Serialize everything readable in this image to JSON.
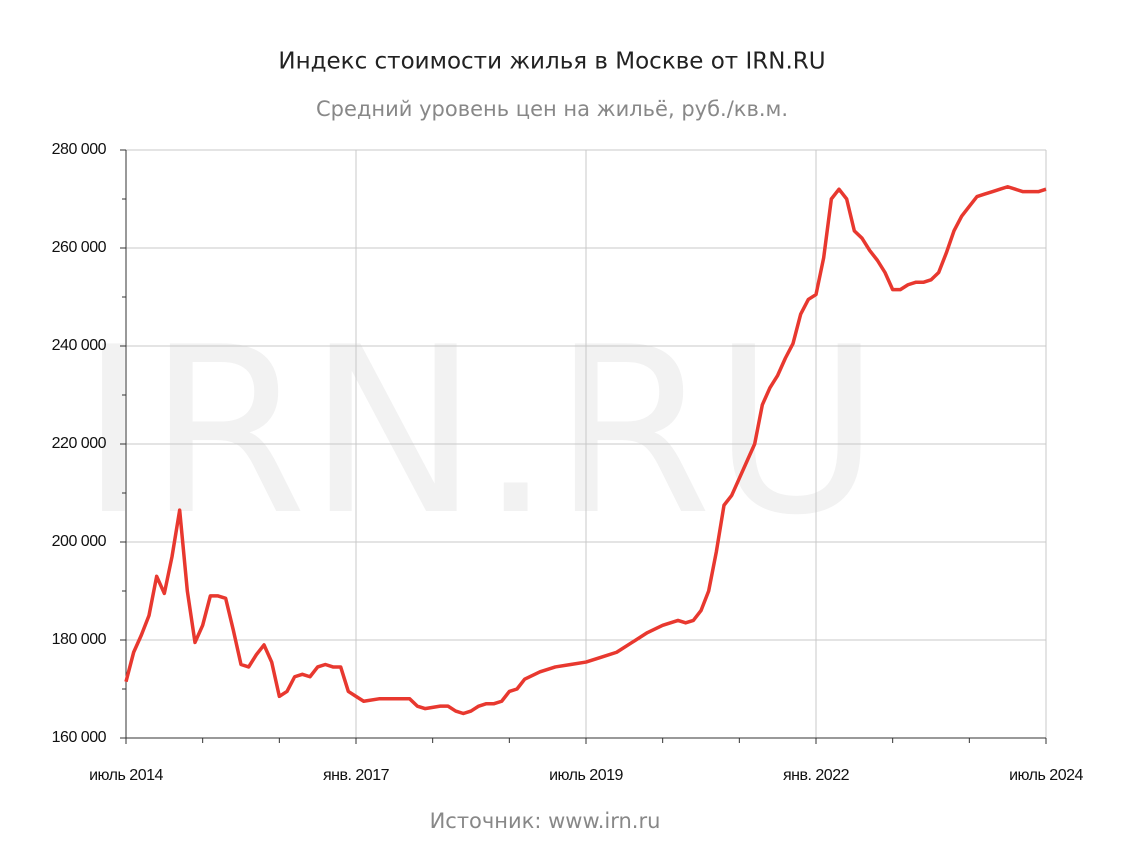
{
  "chart_data": {
    "type": "line",
    "title": "Индекс стоимости жилья в Москве от IRN.RU",
    "subtitle": "Средний уровень цен на жильё, руб./кв.м.",
    "watermark": "IRN.RU",
    "source": "Источник: www.irn.ru",
    "x": [
      "2014-07",
      "2014-08",
      "2014-09",
      "2014-10",
      "2014-11",
      "2014-12",
      "2015-01",
      "2015-02",
      "2015-03",
      "2015-04",
      "2015-05",
      "2015-06",
      "2015-07",
      "2015-08",
      "2015-09",
      "2015-10",
      "2015-11",
      "2015-12",
      "2016-01",
      "2016-02",
      "2016-03",
      "2016-04",
      "2016-05",
      "2016-06",
      "2016-07",
      "2016-08",
      "2016-09",
      "2016-10",
      "2016-11",
      "2016-12",
      "2017-01",
      "2017-02",
      "2017-04",
      "2017-07",
      "2017-08",
      "2017-09",
      "2017-10",
      "2017-12",
      "2018-01",
      "2018-02",
      "2018-03",
      "2018-04",
      "2018-05",
      "2018-06",
      "2018-07",
      "2018-08",
      "2018-09",
      "2018-10",
      "2018-11",
      "2019-01",
      "2019-03",
      "2019-05",
      "2019-07",
      "2019-09",
      "2019-11",
      "2020-01",
      "2020-03",
      "2020-05",
      "2020-07",
      "2020-08",
      "2020-09",
      "2020-10",
      "2020-11",
      "2020-12",
      "2021-01",
      "2021-02",
      "2021-03",
      "2021-04",
      "2021-05",
      "2021-06",
      "2021-07",
      "2021-08",
      "2021-09",
      "2021-10",
      "2021-11",
      "2021-12",
      "2022-01",
      "2022-02",
      "2022-03",
      "2022-04",
      "2022-05",
      "2022-06",
      "2022-07",
      "2022-08",
      "2022-09",
      "2022-10",
      "2022-11",
      "2022-12",
      "2023-01",
      "2023-02",
      "2023-03",
      "2023-04",
      "2023-05",
      "2023-06",
      "2023-07",
      "2023-08",
      "2023-09",
      "2023-10",
      "2023-11",
      "2023-12",
      "2024-01",
      "2024-02",
      "2024-03",
      "2024-04",
      "2024-05",
      "2024-06",
      "2024-07"
    ],
    "series": [
      {
        "color": "#e8382f",
        "values": [
          171500,
          177500,
          181000,
          185000,
          193000,
          189500,
          197000,
          206500,
          190000,
          179500,
          183000,
          189000,
          189000,
          188500,
          182000,
          175000,
          174500,
          177000,
          179000,
          175500,
          168500,
          169500,
          172500,
          173000,
          172500,
          174500,
          175000,
          174500,
          174500,
          169500,
          168500,
          167500,
          168000,
          168000,
          168000,
          166500,
          166000,
          166500,
          166500,
          165500,
          165000,
          165500,
          166500,
          167000,
          167000,
          167500,
          169500,
          170000,
          172000,
          173500,
          174500,
          175000,
          175500,
          176500,
          177500,
          179500,
          181500,
          183000,
          184000,
          183500,
          184000,
          186000,
          190000,
          198000,
          207500,
          209500,
          213000,
          216500,
          220000,
          228000,
          231500,
          234000,
          237500,
          240500,
          246500,
          249500,
          250500,
          258000,
          270000,
          272000,
          270000,
          263500,
          262000,
          259500,
          257500,
          255000,
          251500,
          251500,
          252500,
          253000,
          253000,
          253500,
          255000,
          259000,
          263500,
          266500,
          268500,
          270500,
          271000,
          271500,
          272000,
          272500,
          272000,
          271500,
          271500,
          271500,
          272000
        ]
      }
    ],
    "xlim": [
      "2014-07",
      "2024-07"
    ],
    "xticks": [
      {
        "value": "2014-07",
        "label": "июль 2014"
      },
      {
        "value": "2017-01",
        "label": "янв. 2017"
      },
      {
        "value": "2019-07",
        "label": "июль 2019"
      },
      {
        "value": "2022-01",
        "label": "янв. 2022"
      },
      {
        "value": "2024-07",
        "label": "июль 2024"
      }
    ],
    "xminor_ticks": [
      "2015-05",
      "2016-03",
      "2017-11",
      "2018-09",
      "2020-05",
      "2021-03",
      "2022-11",
      "2023-09"
    ],
    "ylim": [
      160000,
      280000
    ],
    "yticks": [
      {
        "value": 160000,
        "label": "160 000"
      },
      {
        "value": 180000,
        "label": "180 000"
      },
      {
        "value": 200000,
        "label": "200 000"
      },
      {
        "value": 220000,
        "label": "220 000"
      },
      {
        "value": 240000,
        "label": "240 000"
      },
      {
        "value": 260000,
        "label": "260 000"
      },
      {
        "value": 280000,
        "label": "280 000"
      }
    ],
    "yminor_ticks": [
      170000,
      190000,
      210000,
      230000,
      250000,
      270000
    ],
    "grid": true
  }
}
